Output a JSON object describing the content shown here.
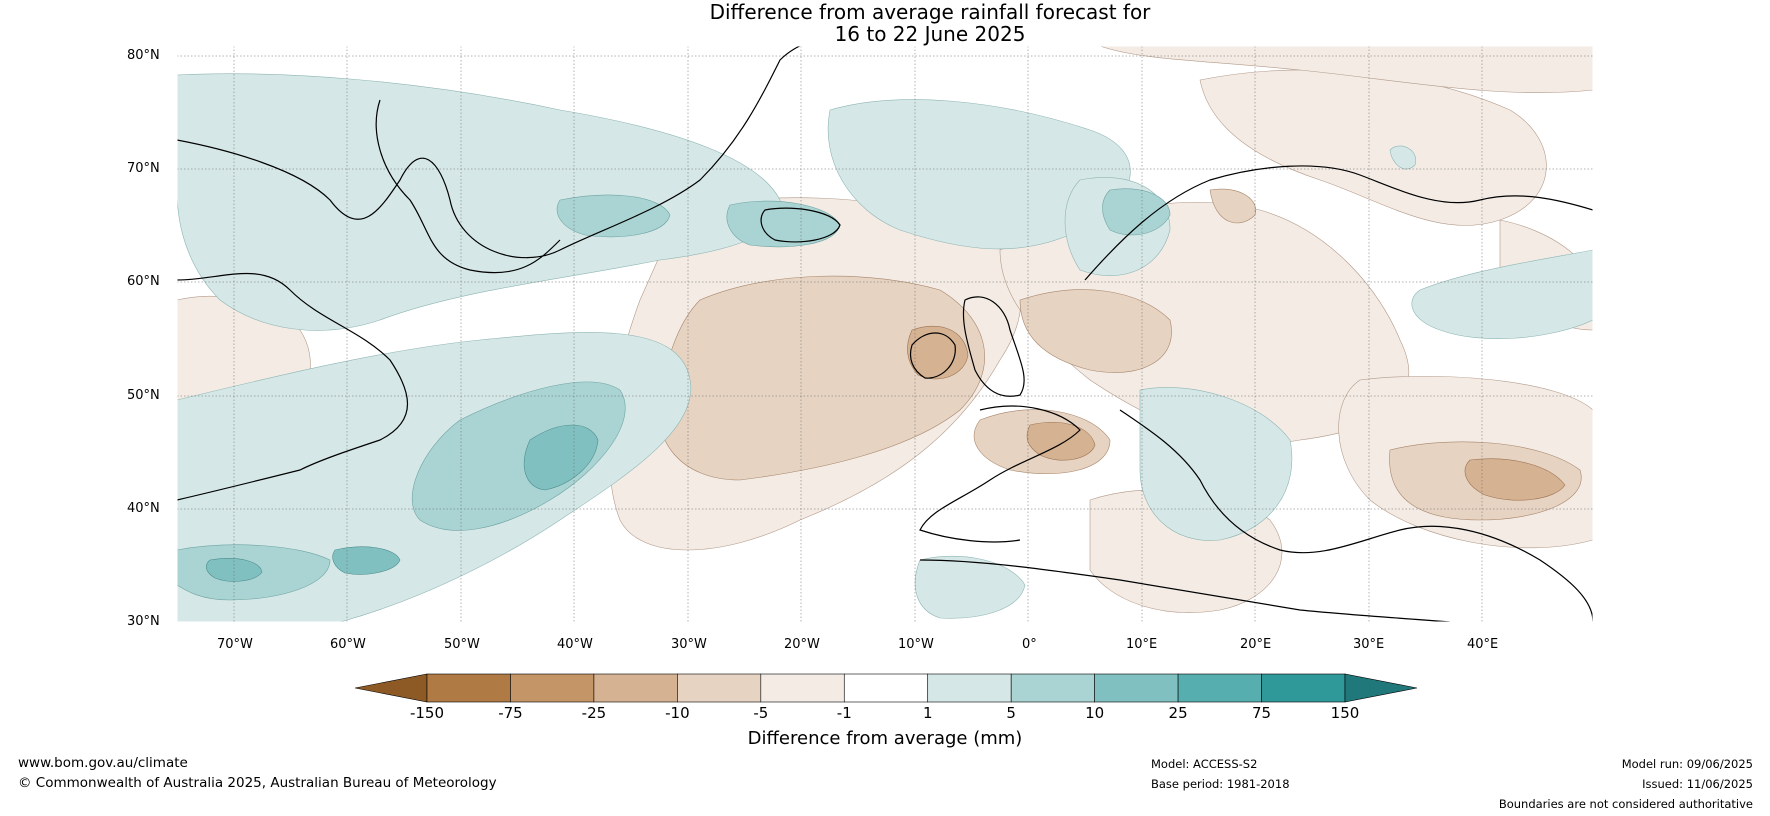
{
  "title_line1": "Difference from average rainfall forecast for",
  "title_line2": "16 to 22 June 2025",
  "lat_labels": [
    "80°N",
    "70°N",
    "60°N",
    "50°N",
    "40°N",
    "30°N"
  ],
  "lon_labels": [
    "70°W",
    "60°W",
    "50°W",
    "40°W",
    "30°W",
    "20°W",
    "10°W",
    "0°",
    "10°E",
    "20°E",
    "30°E",
    "40°E"
  ],
  "colorbar": {
    "title": "Difference from average (mm)",
    "ticks": [
      "-150",
      "-75",
      "-25",
      "-10",
      "-5",
      "-1",
      "1",
      "5",
      "10",
      "25",
      "75",
      "150"
    ],
    "colors": [
      "#8d5a26",
      "#b07a45",
      "#c49566",
      "#d5b291",
      "#e6d3c1",
      "#f3ebe4",
      "#ffffff",
      "#d5e8e7",
      "#a9d4d3",
      "#80c0c0",
      "#57aeae",
      "#2f9898",
      "#21787a"
    ]
  },
  "footer": {
    "website": "www.bom.gov.au/climate",
    "copyright": "© Commonwealth of Australia 2025, Australian Bureau of Meteorology",
    "model": "Model: ACCESS-S2",
    "base_period": "Base period: 1981-2018",
    "model_run": "Model run: 09/06/2025",
    "issued": "Issued: 11/06/2025",
    "disclaimer": "Boundaries are not considered authoritative"
  },
  "shading_colors": {
    "dry_light": "#f3ebe4",
    "dry_mid": "#e6d3c1",
    "dry_strong": "#d5b291",
    "wet_light": "#d5e8e7",
    "wet_mid": "#a9d4d3",
    "wet_strong": "#80c0c0"
  }
}
